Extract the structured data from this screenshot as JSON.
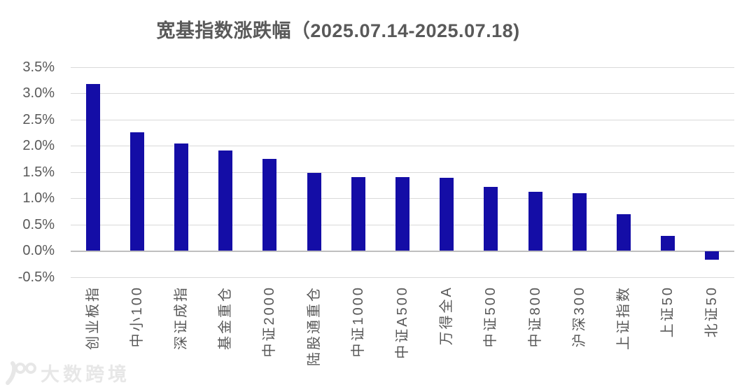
{
  "title": "宽基指数涨跌幅（2025.07.14-2025.07.18)",
  "watermark": {
    "logo_text": "100",
    "brand": "大数跨境"
  },
  "colors": {
    "bar": "#140da6",
    "grid": "#d9d9d9",
    "axis": "#bfbfbf",
    "text": "#595959",
    "watermark": "#e7e7e7"
  },
  "chart_data": {
    "type": "bar",
    "title": "宽基指数涨跌幅（2025.07.14-2025.07.18)",
    "categories": [
      "创业板指",
      "中小100",
      "深证成指",
      "基金重仓",
      "中证2000",
      "陆股通重仓",
      "中证1000",
      "中证A500",
      "万得全A",
      "中证500",
      "中证800",
      "沪深300",
      "上证指数",
      "上证50",
      "北证50"
    ],
    "values": [
      3.17,
      2.26,
      2.04,
      1.91,
      1.75,
      1.48,
      1.4,
      1.4,
      1.39,
      1.22,
      1.12,
      1.09,
      0.69,
      0.28,
      -0.16
    ],
    "unit": "%",
    "xlabel": "",
    "ylabel": "",
    "ylim": [
      -0.5,
      3.5
    ],
    "ytick_values": [
      3.5,
      3.0,
      2.5,
      2.0,
      1.5,
      1.0,
      0.5,
      0.0,
      -0.5
    ],
    "ytick_labels": [
      "3.5%",
      "3.0%",
      "2.5%",
      "2.0%",
      "1.5%",
      "1.0%",
      "0.5%",
      "0.0%",
      "-0.5%"
    ],
    "grid": true,
    "legend": false,
    "bar_color": "#140da6",
    "category_label_rotation_deg": 90
  }
}
